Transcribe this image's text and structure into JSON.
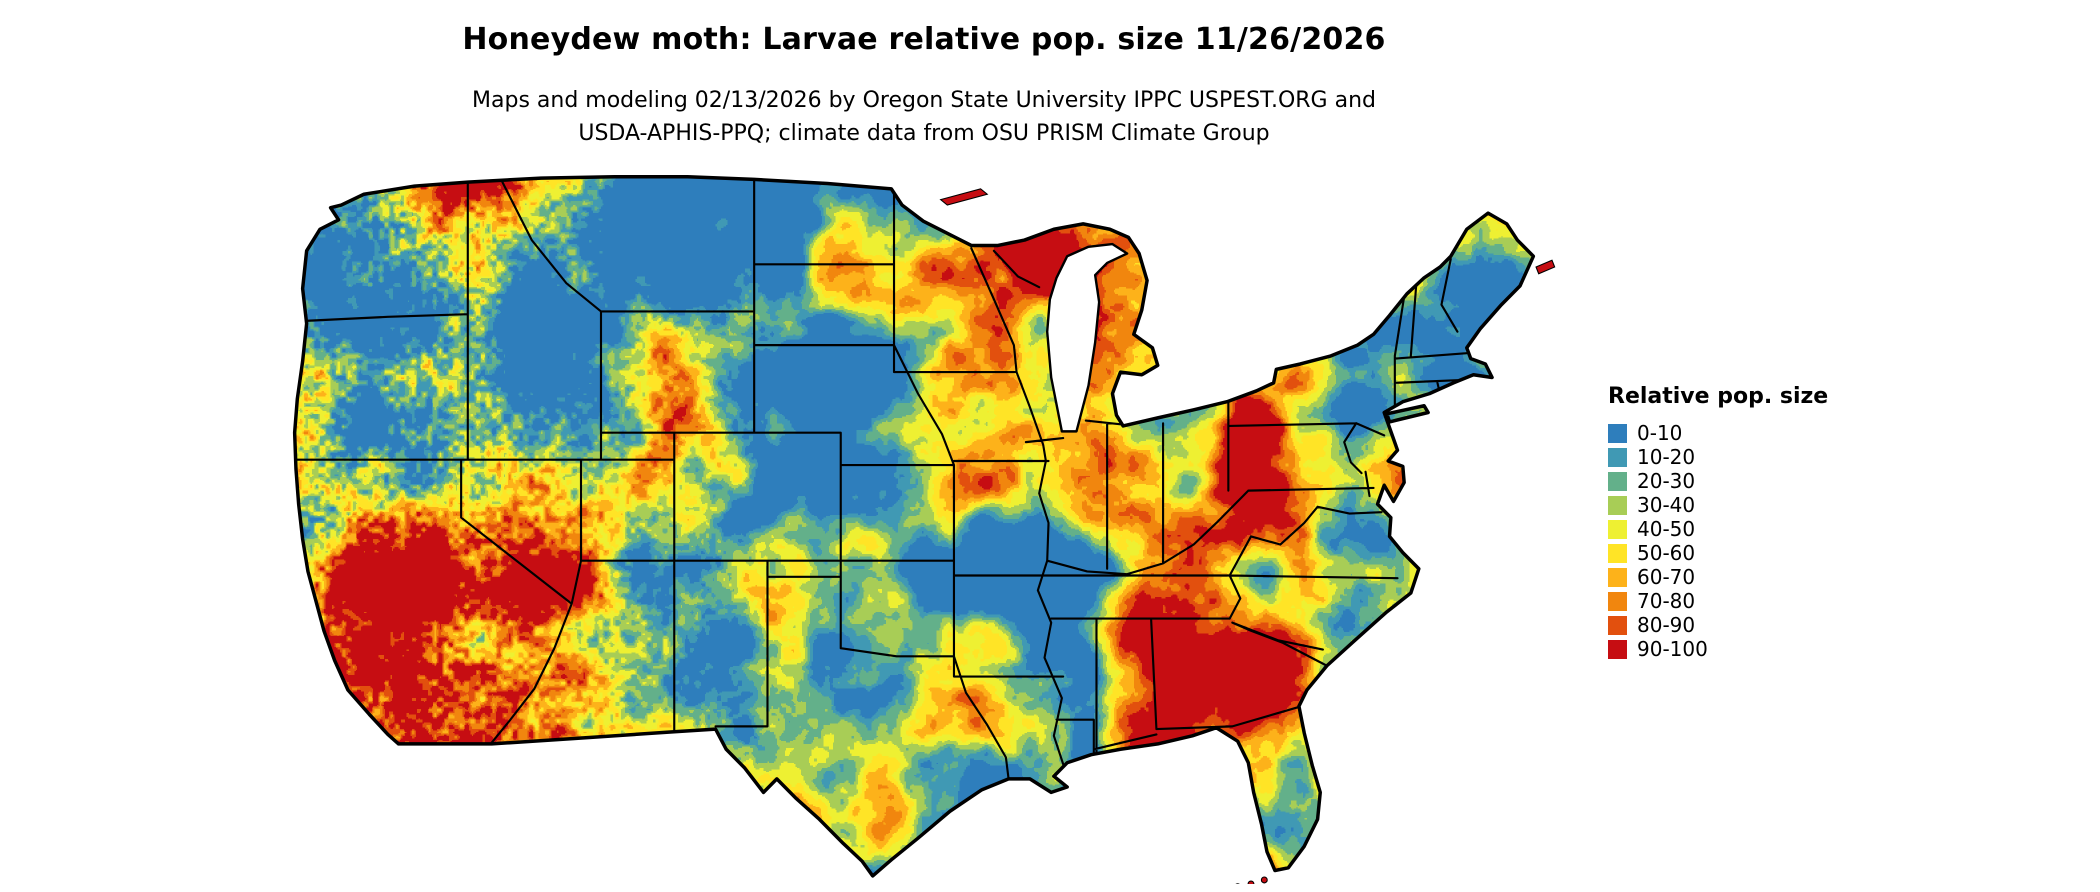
{
  "header": {
    "title": "Honeydew moth: Larvae relative pop. size 11/26/2026",
    "subtitle_line1": "Maps and modeling 02/13/2026 by Oregon State University IPPC USPEST.ORG and",
    "subtitle_line2": "USDA-APHIS-PPQ; climate data from OSU PRISM Climate Group"
  },
  "map": {
    "region": "Contiguous United States",
    "kind": "classified raster population map",
    "border_color": "#000000",
    "water_color": "#ffffff",
    "background_color": "#ffffff"
  },
  "legend": {
    "title": "Relative pop. size",
    "items": [
      {
        "label": "0-10",
        "color": "#2e7ebc"
      },
      {
        "label": "10-20",
        "color": "#4099b4"
      },
      {
        "label": "20-30",
        "color": "#63b08a"
      },
      {
        "label": "30-40",
        "color": "#a8cd56"
      },
      {
        "label": "40-50",
        "color": "#eef032"
      },
      {
        "label": "50-60",
        "color": "#ffe426"
      },
      {
        "label": "60-70",
        "color": "#fdb21a"
      },
      {
        "label": "70-80",
        "color": "#f1860e"
      },
      {
        "label": "80-90",
        "color": "#e2500e"
      },
      {
        "label": "90-100",
        "color": "#c60d12"
      }
    ]
  }
}
